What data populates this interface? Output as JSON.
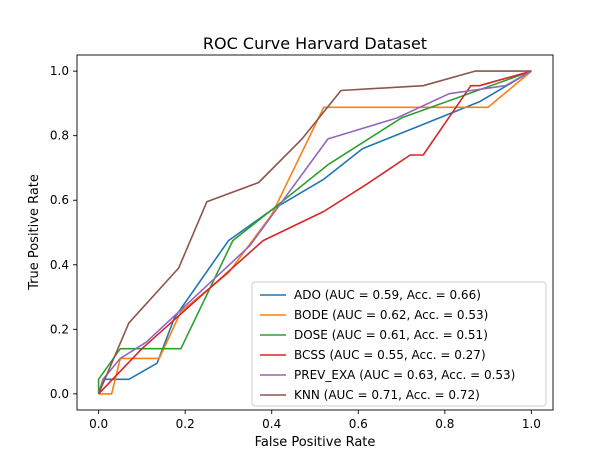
{
  "chart_data": {
    "type": "line",
    "title": "ROC Curve Harvard Dataset",
    "xlabel": "False Positive Rate",
    "ylabel": "True Positive Rate",
    "xlim": [
      -0.05,
      1.05
    ],
    "ylim": [
      -0.05,
      1.05
    ],
    "xticks": [
      "0.0",
      "0.2",
      "0.4",
      "0.6",
      "0.8",
      "1.0"
    ],
    "yticks": [
      "0.0",
      "0.2",
      "0.4",
      "0.6",
      "0.8",
      "1.0"
    ],
    "grid": false,
    "legend_position": "lower-right",
    "series": [
      {
        "name": "ADO (AUC = 0.59, Acc. = 0.66)",
        "color": "#1f77b4",
        "x": [
          0.0,
          0.01,
          0.07,
          0.135,
          0.175,
          0.3,
          0.4,
          0.52,
          0.61,
          0.75,
          0.88,
          1.0
        ],
        "y": [
          0.0,
          0.045,
          0.045,
          0.095,
          0.235,
          0.475,
          0.57,
          0.665,
          0.76,
          0.835,
          0.905,
          1.0
        ]
      },
      {
        "name": "BODE (AUC = 0.62, Acc. = 0.53)",
        "color": "#ff7f0e",
        "x": [
          0.0,
          0.03,
          0.05,
          0.14,
          0.19,
          0.3,
          0.4,
          0.52,
          0.9,
          1.0
        ],
        "y": [
          0.0,
          0.0,
          0.11,
          0.11,
          0.255,
          0.375,
          0.555,
          0.888,
          0.888,
          1.0
        ]
      },
      {
        "name": "DOSE (AUC = 0.61, Acc. = 0.51)",
        "color": "#2ca02c",
        "x": [
          0.0,
          0.0,
          0.05,
          0.19,
          0.31,
          0.4,
          0.53,
          0.7,
          1.0
        ],
        "y": [
          0.0,
          0.045,
          0.14,
          0.14,
          0.475,
          0.57,
          0.71,
          0.855,
          1.0
        ]
      },
      {
        "name": "BCSS (AUC = 0.55, Acc. = 0.27)",
        "color": "#d62728",
        "x": [
          0.0,
          0.1,
          0.38,
          0.52,
          0.62,
          0.72,
          0.75,
          0.86,
          0.88,
          1.0
        ],
        "y": [
          0.0,
          0.14,
          0.475,
          0.565,
          0.65,
          0.74,
          0.74,
          0.955,
          0.955,
          1.0
        ]
      },
      {
        "name": "PREV_EXA (AUC = 0.63, Acc. = 0.53)",
        "color": "#9467bd",
        "x": [
          0.0,
          0.01,
          0.05,
          0.11,
          0.35,
          0.53,
          0.69,
          0.81,
          0.94,
          1.0
        ],
        "y": [
          0.0,
          0.045,
          0.11,
          0.16,
          0.46,
          0.79,
          0.855,
          0.93,
          0.955,
          1.0
        ]
      },
      {
        "name": "KNN (AUC = 0.71, Acc. = 0.72)",
        "color": "#8c564b",
        "x": [
          0.0,
          0.07,
          0.185,
          0.25,
          0.37,
          0.47,
          0.56,
          0.75,
          0.87,
          1.0
        ],
        "y": [
          0.0,
          0.22,
          0.39,
          0.595,
          0.655,
          0.79,
          0.94,
          0.955,
          1.0,
          1.0
        ]
      }
    ]
  }
}
